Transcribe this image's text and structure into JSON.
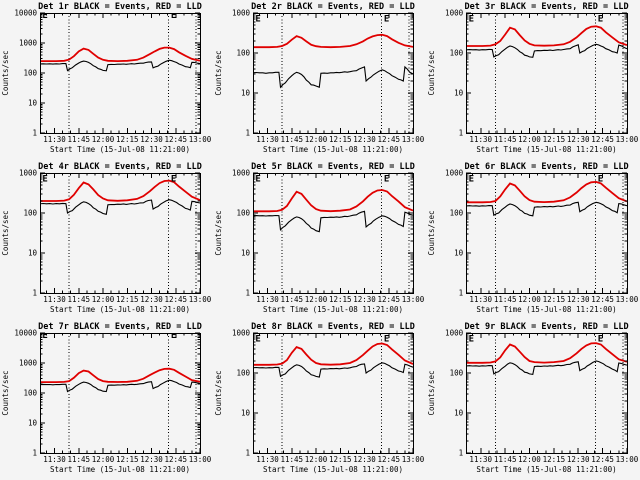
{
  "window": {
    "background": "#f4f4f4"
  },
  "chart_data": {
    "type": "line",
    "layout": {
      "rows": 3,
      "cols": 3,
      "grid": "off",
      "y_scale": "log"
    },
    "x_axis": {
      "label": "Start Time (15-Jul-08 11:21:00)",
      "start_minutes": 0,
      "end_minutes": 99,
      "tick_labels": [
        "11:30",
        "11:45",
        "12:00",
        "12:15",
        "12:30",
        "12:45",
        "13:00"
      ],
      "tick_minutes": [
        9,
        24,
        39,
        54,
        69,
        84,
        99
      ],
      "minor_tick_minutes": [
        4,
        14,
        19,
        29,
        34,
        44,
        49,
        59,
        64,
        74,
        79,
        89,
        94
      ]
    },
    "y_axis": {
      "label": "Counts/sec",
      "scale": "log",
      "min": 1
    },
    "legend_note": "BLACK = Events, RED = LLD",
    "colors": {
      "events_series": "#000000",
      "lld_series": "#e00000",
      "frame": "#000000",
      "dotted_guides": "#000000",
      "background": "#f4f4f4"
    },
    "dotted_guide_minutes": [
      18,
      79.5,
      96.5
    ],
    "event_marker": {
      "glyph": "E",
      "minutes": [
        1.5,
        81
      ]
    },
    "red_minutes": [
      0,
      5,
      10,
      15,
      18,
      21,
      24,
      27,
      30,
      33,
      36,
      39,
      42,
      48,
      54,
      60,
      64,
      68,
      71,
      74,
      77,
      80,
      83,
      86,
      90,
      94,
      99
    ],
    "black_minutes": [
      0,
      4,
      8,
      12,
      16,
      17,
      20,
      24,
      27,
      30,
      33,
      36,
      39,
      41,
      42,
      46,
      50,
      55,
      60,
      64,
      67,
      69,
      70,
      73,
      76,
      80,
      83,
      86,
      90,
      93,
      94,
      97,
      99
    ],
    "panels": [
      {
        "title": "Det 1r BLACK = Events, RED = LLD",
        "detector": "Det 1r",
        "y_max": 10000,
        "lld_counts": [
          250,
          250,
          250,
          255,
          280,
          363,
          525,
          650,
          588,
          438,
          325,
          275,
          255,
          250,
          255,
          275,
          325,
          425,
          525,
          638,
          700,
          700,
          625,
          488,
          375,
          295,
          255
        ],
        "events_counts": [
          200,
          200,
          198,
          200,
          205,
          120,
          150,
          215,
          250,
          225,
          175,
          140,
          122,
          118,
          190,
          192,
          196,
          200,
          205,
          212,
          230,
          235,
          148,
          170,
          215,
          268,
          240,
          200,
          162,
          150,
          228,
          215,
          205
        ]
      },
      {
        "title": "Det 2r BLACK = Events, RED = LLD",
        "detector": "Det 2r",
        "y_max": 1000,
        "lld_counts": [
          140,
          140,
          140,
          142,
          150,
          170,
          215,
          265,
          240,
          195,
          160,
          148,
          142,
          140,
          142,
          150,
          165,
          195,
          230,
          260,
          280,
          285,
          265,
          220,
          180,
          155,
          142
        ],
        "events_counts": [
          32,
          32,
          31,
          32,
          33,
          14,
          18,
          27,
          33,
          29,
          21,
          16,
          15,
          14,
          31,
          31,
          32,
          33,
          34,
          36,
          42,
          45,
          20,
          25,
          31,
          38,
          33,
          27,
          22,
          20,
          45,
          33,
          30
        ]
      },
      {
        "title": "Det 3r BLACK = Events, RED = LLD",
        "detector": "Det 3r",
        "y_max": 1000,
        "lld_counts": [
          150,
          150,
          150,
          153,
          165,
          200,
          290,
          430,
          390,
          280,
          205,
          170,
          155,
          152,
          155,
          165,
          190,
          245,
          315,
          400,
          455,
          465,
          430,
          330,
          245,
          185,
          158
        ],
        "events_counts": [
          120,
          120,
          118,
          120,
          122,
          80,
          90,
          125,
          150,
          135,
          108,
          88,
          80,
          78,
          112,
          114,
          116,
          118,
          122,
          128,
          150,
          160,
          100,
          115,
          140,
          165,
          150,
          128,
          108,
          100,
          158,
          140,
          128
        ]
      },
      {
        "title": "Det 4r BLACK = Events, RED = LLD",
        "detector": "Det 4r",
        "y_max": 1000,
        "lld_counts": [
          200,
          200,
          200,
          204,
          220,
          285,
          420,
          580,
          520,
          390,
          280,
          230,
          208,
          202,
          208,
          225,
          265,
          350,
          450,
          560,
          630,
          645,
          590,
          460,
          340,
          255,
          210
        ],
        "events_counts": [
          170,
          170,
          168,
          170,
          172,
          100,
          115,
          160,
          190,
          172,
          135,
          110,
          97,
          93,
          160,
          162,
          165,
          168,
          172,
          180,
          205,
          210,
          125,
          145,
          180,
          215,
          195,
          165,
          130,
          118,
          195,
          185,
          178
        ]
      },
      {
        "title": "Det 5r BLACK = Events, RED = LLD",
        "detector": "Det 5r",
        "y_max": 1000,
        "lld_counts": [
          110,
          110,
          110,
          112,
          120,
          150,
          230,
          340,
          300,
          215,
          155,
          125,
          114,
          111,
          114,
          122,
          145,
          195,
          255,
          320,
          365,
          375,
          345,
          265,
          195,
          140,
          115
        ],
        "events_counts": [
          85,
          85,
          84,
          85,
          86,
          38,
          48,
          68,
          80,
          72,
          55,
          42,
          36,
          34,
          76,
          77,
          78,
          80,
          84,
          90,
          105,
          110,
          45,
          55,
          70,
          85,
          78,
          65,
          52,
          46,
          105,
          92,
          88
        ]
      },
      {
        "title": "Det 6r BLACK = Events, RED = LLD",
        "detector": "Det 6r",
        "y_max": 1000,
        "lld_counts": [
          185,
          185,
          185,
          188,
          200,
          260,
          390,
          545,
          490,
          360,
          260,
          210,
          192,
          187,
          192,
          208,
          245,
          325,
          420,
          520,
          585,
          600,
          550,
          430,
          315,
          235,
          195
        ],
        "events_counts": [
          150,
          150,
          148,
          150,
          152,
          88,
          100,
          140,
          168,
          152,
          120,
          98,
          88,
          85,
          140,
          141,
          143,
          146,
          150,
          158,
          180,
          185,
          108,
          125,
          155,
          185,
          170,
          142,
          115,
          102,
          172,
          160,
          152
        ]
      },
      {
        "title": "Det 7r BLACK = Events, RED = LLD",
        "detector": "Det 7r",
        "y_max": 10000,
        "lld_counts": [
          230,
          230,
          230,
          234,
          250,
          320,
          460,
          560,
          520,
          390,
          290,
          250,
          236,
          232,
          236,
          255,
          300,
          395,
          480,
          575,
          635,
          645,
          595,
          470,
          355,
          270,
          238
        ],
        "events_counts": [
          190,
          190,
          188,
          190,
          195,
          112,
          135,
          195,
          230,
          210,
          165,
          130,
          115,
          112,
          180,
          182,
          185,
          190,
          195,
          205,
          230,
          238,
          140,
          165,
          210,
          268,
          240,
          200,
          165,
          152,
          230,
          218,
          208
        ]
      },
      {
        "title": "Det 8r BLACK = Events, RED = LLD",
        "detector": "Det 8r",
        "y_max": 1000,
        "lld_counts": [
          160,
          160,
          160,
          163,
          172,
          210,
          320,
          445,
          400,
          290,
          215,
          178,
          165,
          161,
          165,
          178,
          210,
          280,
          360,
          460,
          530,
          545,
          500,
          390,
          285,
          205,
          168
        ],
        "events_counts": [
          135,
          135,
          133,
          135,
          138,
          82,
          95,
          135,
          160,
          145,
          112,
          90,
          82,
          79,
          125,
          126,
          128,
          130,
          135,
          145,
          165,
          168,
          100,
          118,
          148,
          180,
          162,
          135,
          112,
          103,
          165,
          150,
          140
        ]
      },
      {
        "title": "Det 9r BLACK = Events, RED = LLD",
        "detector": "Det 9r",
        "y_max": 1000,
        "lld_counts": [
          180,
          180,
          180,
          183,
          195,
          245,
          370,
          515,
          460,
          340,
          250,
          200,
          187,
          182,
          187,
          200,
          235,
          310,
          400,
          490,
          550,
          560,
          515,
          400,
          295,
          220,
          190
        ],
        "events_counts": [
          150,
          150,
          148,
          150,
          152,
          95,
          108,
          148,
          180,
          162,
          128,
          105,
          95,
          92,
          145,
          146,
          148,
          152,
          156,
          165,
          185,
          190,
          115,
          132,
          162,
          200,
          182,
          152,
          125,
          108,
          178,
          165,
          158
        ]
      }
    ]
  }
}
